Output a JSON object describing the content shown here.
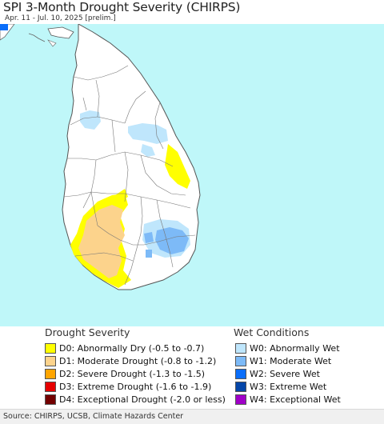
{
  "title": "SPI 3-Month Drought Severity (CHIRPS)",
  "subtitle": "Apr. 11 - Jul. 10, 2025 [prelim.]",
  "map": {
    "region": "Sri Lanka",
    "colors": {
      "ocean": "#bff7f9",
      "land": "#ffffff",
      "boundary": "#555555",
      "india": "#ffffff"
    }
  },
  "legend": {
    "drought_heading": "Drought Severity",
    "drought_items": [
      {
        "label": "D0: Abnormally Dry (-0.5 to -0.7)",
        "color": "#ffff00"
      },
      {
        "label": "D1: Moderate Drought (-0.8 to -1.2)",
        "color": "#fcd38c"
      },
      {
        "label": "D2: Severe Drought (-1.3 to -1.5)",
        "color": "#ffa500"
      },
      {
        "label": "D3: Extreme Drought (-1.6 to -1.9)",
        "color": "#e60000"
      },
      {
        "label": "D4: Exceptional Drought (-2.0 or less)",
        "color": "#730000"
      }
    ],
    "wet_heading": "Wet Conditions",
    "wet_items": [
      {
        "label": "W0: Abnormally Wet",
        "color": "#bfe6fc"
      },
      {
        "label": "W1: Moderate Wet",
        "color": "#7dbaf7"
      },
      {
        "label": "W2: Severe Wet",
        "color": "#0a6efa"
      },
      {
        "label": "W3: Extreme Wet",
        "color": "#0546a8"
      },
      {
        "label": "W4: Exceptional Wet",
        "color": "#a000c8"
      }
    ]
  },
  "footer": {
    "source": "Source: CHIRPS, UCSB, Climate Hazards Center"
  }
}
